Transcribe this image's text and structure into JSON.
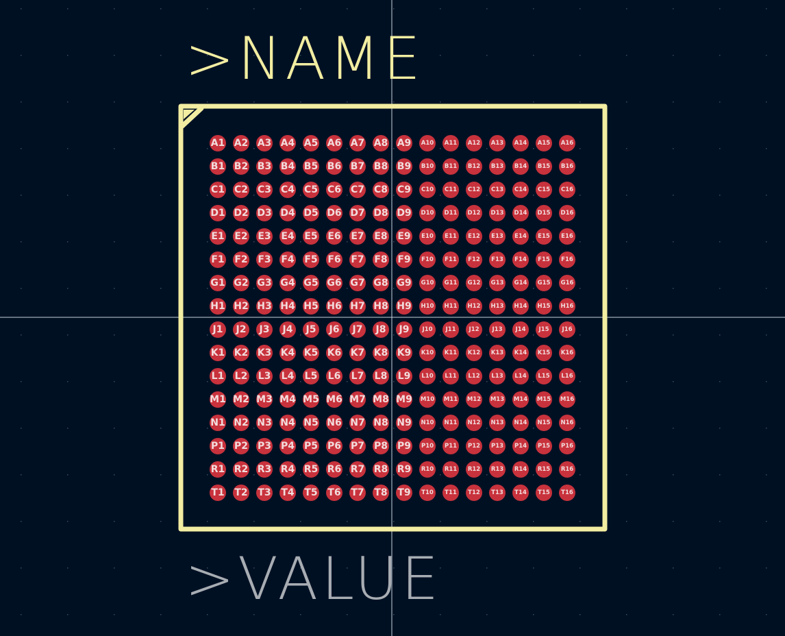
{
  "colors": {
    "background": "#001023",
    "grid_dot": "#3c4a5a",
    "crosshair": "#c9d3de",
    "silkscreen": "#f2eda1",
    "value_text": "#a8adb3",
    "pad": "#c8323c",
    "pad_label": "#f2dcdc"
  },
  "footprint": {
    "name_field": ">NAME",
    "value_field": ">VALUE",
    "rows": [
      "A",
      "B",
      "C",
      "D",
      "E",
      "F",
      "G",
      "H",
      "J",
      "K",
      "L",
      "M",
      "N",
      "P",
      "R",
      "T"
    ],
    "columns": 16
  }
}
